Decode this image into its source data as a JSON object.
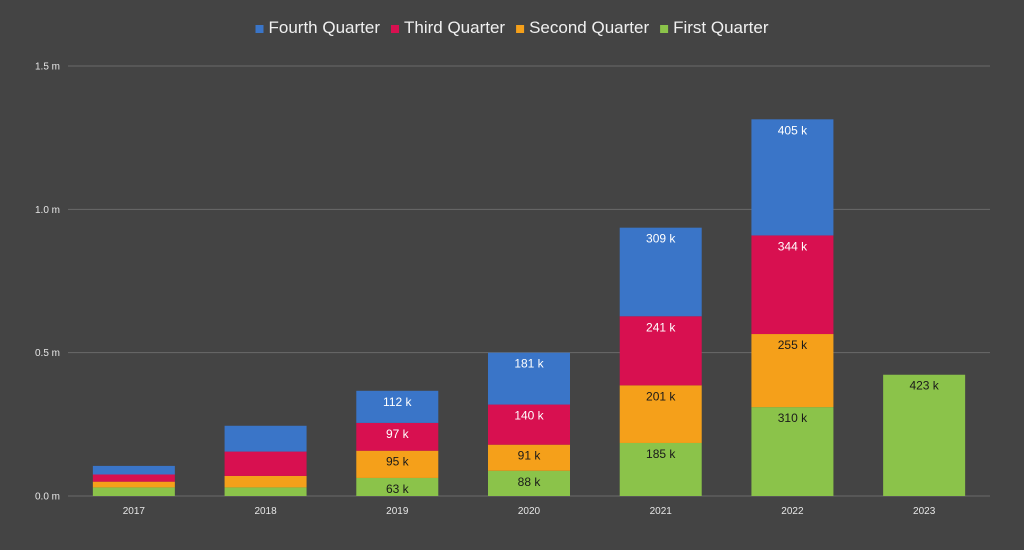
{
  "chart_data": {
    "type": "bar",
    "stacked": true,
    "categories": [
      "2017",
      "2018",
      "2019",
      "2020",
      "2021",
      "2022",
      "2023"
    ],
    "series": [
      {
        "name": "First Quarter",
        "color": "#8bc34a",
        "label_color": "#1a1a1a",
        "values": [
          30000,
          30000,
          63000,
          88000,
          185000,
          310000,
          423000
        ],
        "labels": [
          "",
          "",
          "63 k",
          "88 k",
          "185 k",
          "310 k",
          "423 k"
        ]
      },
      {
        "name": "Second Quarter",
        "color": "#f5a01a",
        "label_color": "#1a1a1a",
        "values": [
          20000,
          40000,
          95000,
          91000,
          201000,
          255000,
          0
        ],
        "labels": [
          "",
          "",
          "95 k",
          "91 k",
          "201 k",
          "255 k",
          ""
        ]
      },
      {
        "name": "Third Quarter",
        "color": "#d81050",
        "label_color": "#ffffff",
        "values": [
          25000,
          85000,
          97000,
          140000,
          241000,
          344000,
          0
        ],
        "labels": [
          "",
          "",
          "97 k",
          "140 k",
          "241 k",
          "344 k",
          ""
        ]
      },
      {
        "name": "Fourth Quarter",
        "color": "#3a75c8",
        "label_color": "#ffffff",
        "values": [
          30000,
          90000,
          112000,
          181000,
          309000,
          405000,
          0
        ],
        "labels": [
          "",
          "",
          "112 k",
          "181 k",
          "309 k",
          "405 k",
          ""
        ]
      }
    ],
    "legend_order": [
      "Fourth Quarter",
      "Third Quarter",
      "Second Quarter",
      "First Quarter"
    ],
    "legend_position": "top-center",
    "y_ticks": [
      {
        "value": 0,
        "label": "0.0 m"
      },
      {
        "value": 500000,
        "label": "0.5 m"
      },
      {
        "value": 1000000,
        "label": "1.0 m"
      },
      {
        "value": 1500000,
        "label": "1.5 m"
      }
    ],
    "ylim": [
      0,
      1500000
    ],
    "grid": true,
    "background": "#444444"
  }
}
